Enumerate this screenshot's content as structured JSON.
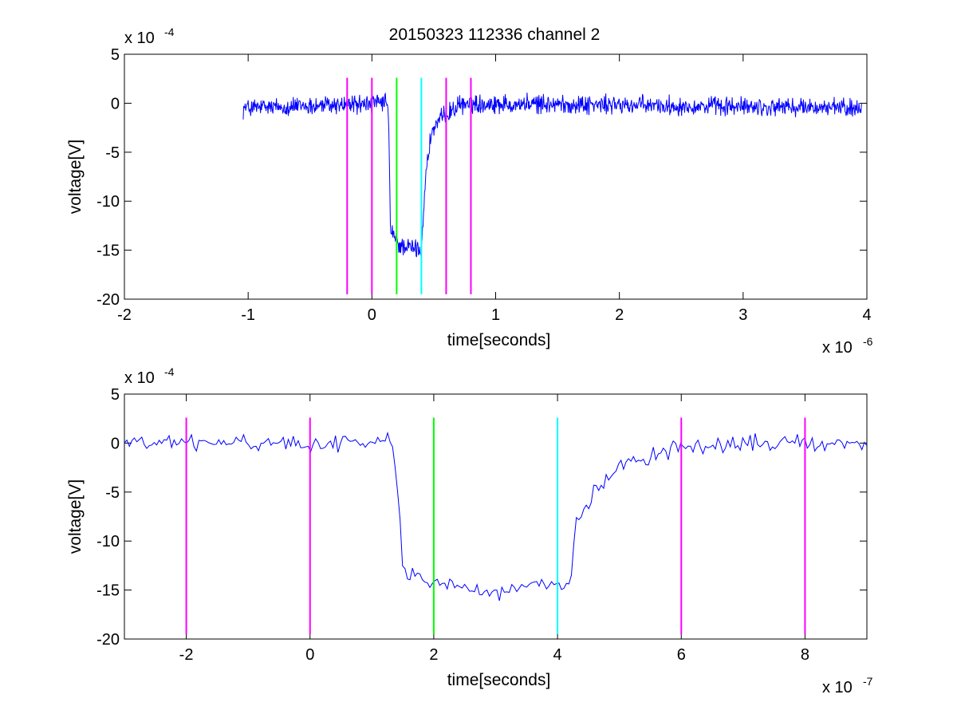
{
  "figure": {
    "title": "20150323 112336 channel 2"
  },
  "chart_data": [
    {
      "type": "line",
      "title": "20150323 112336 channel 2",
      "xlabel": "time[seconds]",
      "ylabel": "voltage[V]",
      "x_exponent_label": "x 10",
      "x_exponent": "-6",
      "y_exponent_label": "x 10",
      "y_exponent": "-4",
      "x_scale": 1e-06,
      "y_scale": 0.0001,
      "xlim": [
        -2e-06,
        4e-06
      ],
      "ylim": [
        -0.002,
        0.0005
      ],
      "xticks": [
        -2e-06,
        -1e-06,
        0,
        1e-06,
        2e-06,
        3e-06,
        4e-06
      ],
      "xtick_labels": [
        "-2",
        "-1",
        "0",
        "1",
        "2",
        "3",
        "4"
      ],
      "yticks": [
        -0.002,
        -0.0015,
        -0.001,
        -0.0005,
        0,
        0.0005
      ],
      "ytick_labels": [
        "-20",
        "-15",
        "-10",
        "-5",
        "0",
        "5"
      ],
      "grid": false,
      "series": [
        {
          "color": "#0000ff",
          "x_start": -1.04e-06,
          "x_end": 3.96e-06,
          "breakpoints": [
            [
              -1.04e-06,
              -5e-05
            ],
            [
              1.3e-07,
              0.0
            ],
            [
              1.4e-07,
              -0.0005
            ],
            [
              1.5e-07,
              -0.0013
            ],
            [
              2.2e-07,
              -0.00145
            ],
            [
              4e-07,
              -0.0015
            ],
            [
              4.3e-07,
              -0.0008
            ],
            [
              4.8e-07,
              -0.0003
            ],
            [
              6e-07,
              -0.0001
            ],
            [
              7.5e-07,
              0.0
            ],
            [
              3.96e-06,
              -5e-05
            ]
          ],
          "noise_amplitude": 0.00012,
          "points": 1250
        }
      ],
      "markers": [
        {
          "x": -2e-07,
          "color": "#ff00ff",
          "ymin": -0.00195,
          "ymax": 0.00026
        },
        {
          "x": 0,
          "color": "#ff00ff",
          "ymin": -0.00195,
          "ymax": 0.00026
        },
        {
          "x": 2e-07,
          "color": "#00ff00",
          "ymin": -0.00195,
          "ymax": 0.00026
        },
        {
          "x": 4e-07,
          "color": "#00ffff",
          "ymin": -0.00195,
          "ymax": 0.00026
        },
        {
          "x": 6e-07,
          "color": "#ff00ff",
          "ymin": -0.00195,
          "ymax": 0.00026
        },
        {
          "x": 8e-07,
          "color": "#ff00ff",
          "ymin": -0.00195,
          "ymax": 0.00026
        }
      ]
    },
    {
      "type": "line",
      "title": "",
      "xlabel": "time[seconds]",
      "ylabel": "voltage[V]",
      "x_exponent_label": "x 10",
      "x_exponent": "-7",
      "y_exponent_label": "x 10",
      "y_exponent": "-4",
      "x_scale": 1e-07,
      "y_scale": 0.0001,
      "xlim": [
        -3e-07,
        9e-07
      ],
      "ylim": [
        -0.002,
        0.0005
      ],
      "xticks": [
        -2e-07,
        0,
        2e-07,
        4e-07,
        6e-07,
        8e-07
      ],
      "xtick_labels": [
        "-2",
        "0",
        "2",
        "4",
        "6",
        "8"
      ],
      "yticks": [
        -0.002,
        -0.0015,
        -0.001,
        -0.0005,
        0,
        0.0005
      ],
      "ytick_labels": [
        "-20",
        "-15",
        "-10",
        "-5",
        "0",
        "5"
      ],
      "grid": false,
      "series": [
        {
          "color": "#0000ff",
          "x_start": -3e-07,
          "x_end": 9e-07,
          "breakpoints": [
            [
              -3e-07,
              0.0
            ],
            [
              1e-07,
              0.0
            ],
            [
              1.25e-07,
              0.0001
            ],
            [
              1.35e-07,
              -0.0001
            ],
            [
              1.45e-07,
              -0.0008
            ],
            [
              1.5e-07,
              -0.0013
            ],
            [
              1.9e-07,
              -0.0014
            ],
            [
              2.5e-07,
              -0.00145
            ],
            [
              3e-07,
              -0.00155
            ],
            [
              3.6e-07,
              -0.00145
            ],
            [
              4e-07,
              -0.0015
            ],
            [
              4.2e-07,
              -0.0015
            ],
            [
              4.3e-07,
              -0.0008
            ],
            [
              4.6e-07,
              -0.0005
            ],
            [
              5e-07,
              -0.0002
            ],
            [
              6e-07,
              -5e-05
            ],
            [
              7e-07,
              0.0
            ],
            [
              9e-07,
              0.0
            ]
          ],
          "noise_amplitude": 0.0001,
          "points": 300
        }
      ],
      "markers": [
        {
          "x": -2e-07,
          "color": "#ff00ff",
          "ymin": -0.00195,
          "ymax": 0.00026
        },
        {
          "x": 0,
          "color": "#ff00ff",
          "ymin": -0.00195,
          "ymax": 0.00026
        },
        {
          "x": 2e-07,
          "color": "#00ff00",
          "ymin": -0.00195,
          "ymax": 0.00026
        },
        {
          "x": 4e-07,
          "color": "#00ffff",
          "ymin": -0.00195,
          "ymax": 0.00026
        },
        {
          "x": 6e-07,
          "color": "#ff00ff",
          "ymin": -0.00195,
          "ymax": 0.00026
        },
        {
          "x": 8e-07,
          "color": "#ff00ff",
          "ymin": -0.00195,
          "ymax": 0.00026
        }
      ]
    }
  ]
}
